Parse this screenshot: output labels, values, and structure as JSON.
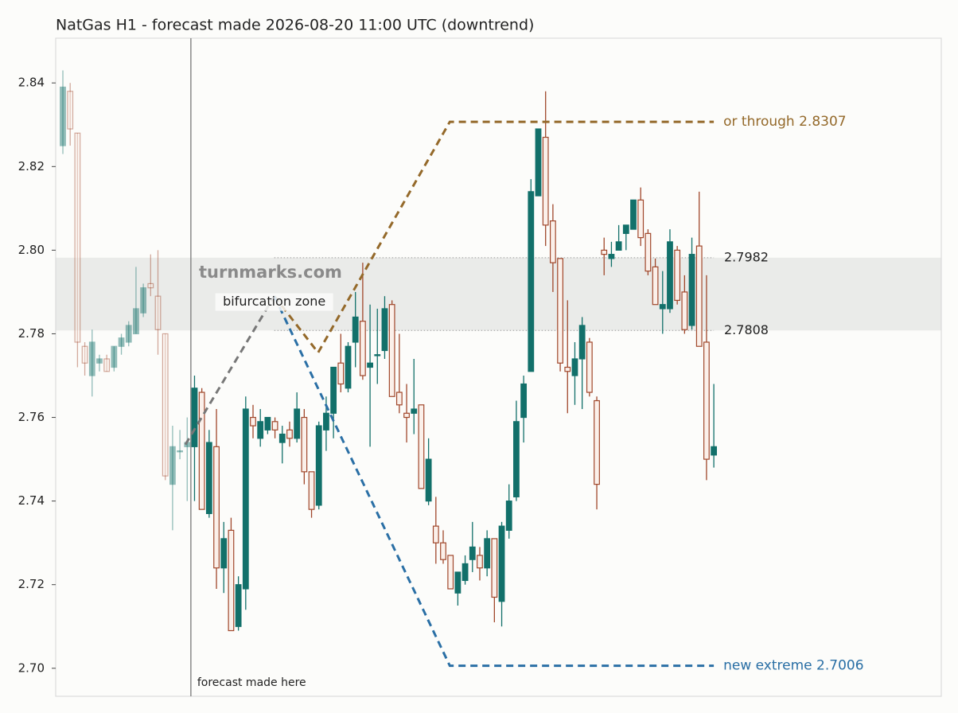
{
  "chart_data": {
    "type": "candlestick",
    "title": "NatGas H1 - forecast made 2026-08-20 11:00 UTC (downtrend)",
    "xlim": [
      -0.98,
      120.1
    ],
    "ylim": [
      2.6933,
      2.8507
    ],
    "yticks": [
      {
        "value": 2.7,
        "label": "2.70"
      },
      2.72,
      2.74,
      2.76,
      2.78,
      {
        "value": 2.8,
        "label": "2.80"
      },
      2.82,
      2.84
    ],
    "colors": {
      "up": "#12706a",
      "down": "#a0472b"
    },
    "candles": {
      "open": [
        2.825,
        2.838,
        2.828,
        2.777,
        2.77,
        2.773,
        2.774,
        2.772,
        2.777,
        2.778,
        2.78,
        2.785,
        2.792,
        2.789,
        2.78,
        2.744,
        2.752,
        2.753,
        2.753,
        2.766,
        2.737,
        2.753,
        2.724,
        2.733,
        2.71,
        2.719,
        2.76,
        2.755,
        2.757,
        2.759,
        2.754,
        2.757,
        2.755,
        2.76,
        2.747,
        2.739,
        2.757,
        2.761,
        2.773,
        2.767,
        2.778,
        2.783,
        2.772,
        2.775,
        2.776,
        2.787,
        2.766,
        2.761,
        2.761,
        2.763,
        2.74,
        2.734,
        2.73,
        2.727,
        2.718,
        2.721,
        2.726,
        2.727,
        2.724,
        2.731,
        2.716,
        2.733,
        2.741,
        2.76,
        2.771,
        2.813,
        2.827,
        2.807,
        2.798,
        2.772,
        2.77,
        2.774,
        2.778,
        2.764,
        2.8,
        2.798,
        2.8,
        2.804,
        2.805,
        2.812,
        2.804,
        2.796,
        2.786,
        2.786,
        2.8,
        2.79,
        2.782,
        2.801,
        2.778,
        2.751
      ],
      "high": [
        2.843,
        2.84,
        2.828,
        2.778,
        2.781,
        2.775,
        2.775,
        2.777,
        2.78,
        2.783,
        2.796,
        2.792,
        2.799,
        2.8,
        2.78,
        2.758,
        2.757,
        2.76,
        2.77,
        2.767,
        2.757,
        2.762,
        2.735,
        2.736,
        2.722,
        2.765,
        2.763,
        2.762,
        2.76,
        2.76,
        2.758,
        2.759,
        2.766,
        2.762,
        2.747,
        2.759,
        2.765,
        2.772,
        2.78,
        2.778,
        2.79,
        2.797,
        2.787,
        2.786,
        2.789,
        2.788,
        2.78,
        2.768,
        2.774,
        2.763,
        2.755,
        2.741,
        2.733,
        2.727,
        2.723,
        2.727,
        2.735,
        2.729,
        2.733,
        2.731,
        2.735,
        2.744,
        2.764,
        2.77,
        2.817,
        2.829,
        2.838,
        2.811,
        2.798,
        2.788,
        2.778,
        2.784,
        2.779,
        2.765,
        2.803,
        2.802,
        2.806,
        2.806,
        2.812,
        2.815,
        2.805,
        2.798,
        2.795,
        2.805,
        2.801,
        2.794,
        2.803,
        2.814,
        2.794,
        2.768
      ],
      "low": [
        2.823,
        2.825,
        2.772,
        2.77,
        2.765,
        2.771,
        2.771,
        2.771,
        2.775,
        2.777,
        2.78,
        2.784,
        2.789,
        2.775,
        2.745,
        2.733,
        2.75,
        2.74,
        2.74,
        2.738,
        2.736,
        2.719,
        2.718,
        2.709,
        2.709,
        2.714,
        2.755,
        2.753,
        2.756,
        2.755,
        2.749,
        2.753,
        2.754,
        2.744,
        2.736,
        2.738,
        2.752,
        2.755,
        2.766,
        2.766,
        2.772,
        2.769,
        2.753,
        2.768,
        2.774,
        2.765,
        2.761,
        2.754,
        2.756,
        2.743,
        2.739,
        2.725,
        2.725,
        2.719,
        2.715,
        2.72,
        2.723,
        2.721,
        2.722,
        2.711,
        2.71,
        2.731,
        2.74,
        2.754,
        2.771,
        2.813,
        2.801,
        2.79,
        2.771,
        2.761,
        2.763,
        2.762,
        2.765,
        2.738,
        2.794,
        2.796,
        2.8,
        2.8,
        2.805,
        2.801,
        2.794,
        2.787,
        2.78,
        2.785,
        2.787,
        2.78,
        2.781,
        2.777,
        2.745,
        2.748
      ],
      "close": [
        2.839,
        2.829,
        2.778,
        2.773,
        2.778,
        2.774,
        2.771,
        2.777,
        2.779,
        2.782,
        2.786,
        2.791,
        2.791,
        2.781,
        2.746,
        2.753,
        2.752,
        2.754,
        2.767,
        2.738,
        2.754,
        2.724,
        2.731,
        2.709,
        2.72,
        2.762,
        2.758,
        2.759,
        2.76,
        2.757,
        2.756,
        2.755,
        2.762,
        2.747,
        2.738,
        2.758,
        2.761,
        2.772,
        2.768,
        2.777,
        2.784,
        2.77,
        2.773,
        2.775,
        2.786,
        2.765,
        2.763,
        2.76,
        2.762,
        2.743,
        2.75,
        2.73,
        2.726,
        2.719,
        2.723,
        2.725,
        2.729,
        2.724,
        2.731,
        2.717,
        2.734,
        2.74,
        2.759,
        2.768,
        2.814,
        2.829,
        2.806,
        2.797,
        2.773,
        2.771,
        2.774,
        2.782,
        2.766,
        2.744,
        2.799,
        2.799,
        2.802,
        2.806,
        2.812,
        2.803,
        2.795,
        2.787,
        2.787,
        2.802,
        2.788,
        2.781,
        2.799,
        2.777,
        2.75,
        2.753
      ]
    },
    "zone": {
      "label": "bifurcation zone",
      "low": 2.7808,
      "high": 2.7982,
      "x_start": 28.9
    },
    "forecast_start": {
      "x": 17.5,
      "label": "forecast made here"
    },
    "watermark": "turnmarks.com",
    "series": [
      {
        "color": "#777777",
        "x": [
          16.75,
          28.9
        ],
        "values": [
          2.7535,
          2.789
        ]
      },
      {
        "color": "#94692a",
        "x": [
          28.9,
          34.9,
          52.9,
          89
        ],
        "values": [
          2.789,
          2.7755,
          2.8307,
          2.8307
        ],
        "label": "or through 2.8307"
      },
      {
        "color": "#2a6fa5",
        "x": [
          28.9,
          52.9,
          89
        ],
        "values": [
          2.789,
          2.7006,
          2.7006
        ],
        "label": "new extreme 2.7006"
      }
    ]
  }
}
